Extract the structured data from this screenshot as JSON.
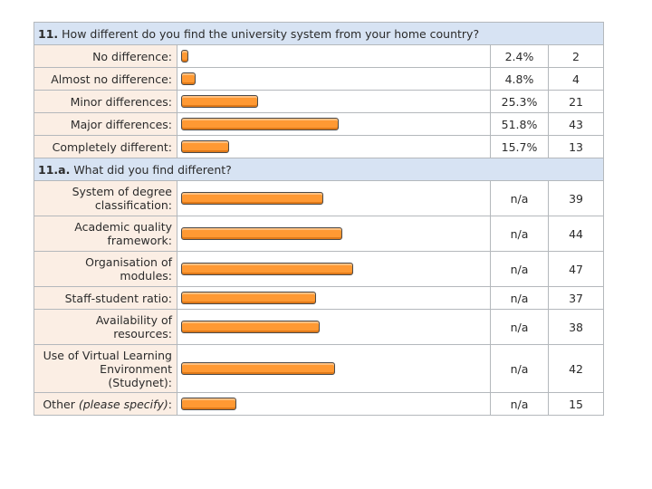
{
  "chart_data": {
    "type": "bar",
    "orientation": "horizontal",
    "questions": [
      {
        "number": "11.",
        "title": "How different do you find the university system from your home country?",
        "bar_scale_max": 100,
        "rows": [
          {
            "label": "No difference:",
            "percent_text": "2.4%",
            "percent": 2.4,
            "count": "2",
            "count_value": 2
          },
          {
            "label": "Almost no difference:",
            "percent_text": "4.8%",
            "percent": 4.8,
            "count": "4",
            "count_value": 4
          },
          {
            "label": "Minor differences:",
            "percent_text": "25.3%",
            "percent": 25.3,
            "count": "21",
            "count_value": 21
          },
          {
            "label": "Major differences:",
            "percent_text": "51.8%",
            "percent": 51.8,
            "count": "43",
            "count_value": 43
          },
          {
            "label": "Completely different:",
            "percent_text": "15.7%",
            "percent": 15.7,
            "count": "13",
            "count_value": 13
          }
        ]
      },
      {
        "number": "11.a.",
        "title": "What did you find different?",
        "bar_scale_max": 83,
        "rows": [
          {
            "label": "System of degree classification:",
            "percent_text": "n/a",
            "count": "39",
            "count_value": 39
          },
          {
            "label": "Academic quality framework:",
            "percent_text": "n/a",
            "count": "44",
            "count_value": 44
          },
          {
            "label": "Organisation of modules:",
            "percent_text": "n/a",
            "count": "47",
            "count_value": 47
          },
          {
            "label": "Staff-student ratio:",
            "percent_text": "n/a",
            "count": "37",
            "count_value": 37
          },
          {
            "label": "Availability of resources:",
            "percent_text": "n/a",
            "count": "38",
            "count_value": 38
          },
          {
            "label": "Use of Virtual Learning Environment (Studynet):",
            "percent_text": "n/a",
            "count": "42",
            "count_value": 42
          },
          {
            "label_main": "Other ",
            "label_note": "(please specify)",
            "label_end": ":",
            "percent_text": "n/a",
            "count": "15",
            "count_value": 15
          }
        ]
      }
    ],
    "colors": {
      "bar": "#ff9933",
      "header_bg": "#d7e3f3",
      "label_bg": "#fbeee4"
    }
  }
}
